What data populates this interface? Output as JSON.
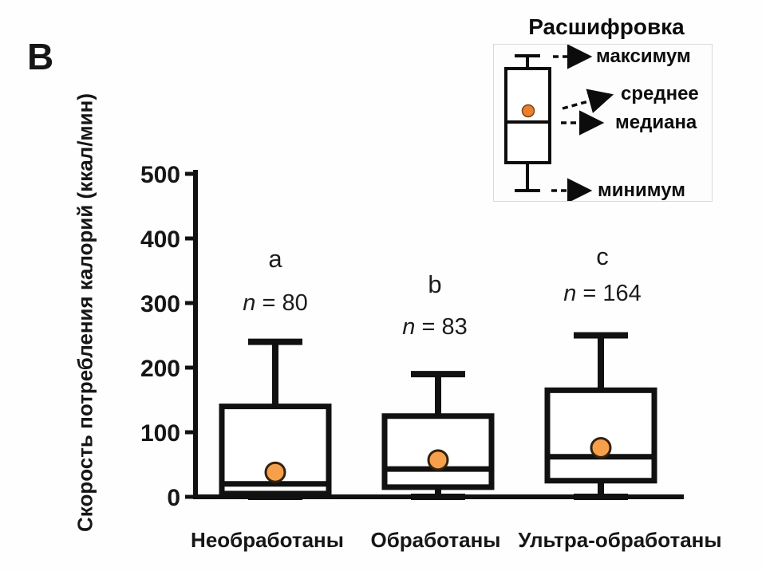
{
  "panel_letter": "В",
  "legend": {
    "title": "Расшифровка",
    "items": {
      "max": "максимум",
      "mean": "среднее",
      "median": "медиана",
      "min": "минимум"
    }
  },
  "chart_data": {
    "type": "boxplot",
    "title": "",
    "ylabel": "Скорость потребления калорий (ккал/мин)",
    "xlabel": "",
    "ylim": [
      0,
      500
    ],
    "yticks": [
      0,
      100,
      200,
      300,
      400,
      500
    ],
    "grid": false,
    "legend_position": "top-right",
    "categories": [
      "Необработаны",
      "Обработаны",
      "Ультра-обработаны"
    ],
    "series": [
      {
        "category": "Необработаны",
        "sig_letter": "a",
        "n_prefix": "n",
        "n_rest": " = 80",
        "n": 80,
        "min": 0,
        "q1": 5,
        "median": 20,
        "q3": 140,
        "max": 240,
        "mean": 38
      },
      {
        "category": "Обработаны",
        "sig_letter": "b",
        "n_prefix": "n",
        "n_rest": " = 83",
        "n": 83,
        "min": 0,
        "q1": 15,
        "median": 43,
        "q3": 125,
        "max": 190,
        "mean": 57
      },
      {
        "category": "Ультра-обработаны",
        "sig_letter": "c",
        "n_prefix": "n",
        "n_rest": " = 164",
        "n": 164,
        "min": 0,
        "q1": 25,
        "median": 62,
        "q3": 165,
        "max": 250,
        "mean": 76
      }
    ],
    "colors": {
      "box_stroke": "#111111",
      "axis": "#111111",
      "mean_dot_fill": "#F6A04B",
      "mean_dot_stroke": "#33220e",
      "legend_dot_fill": "#E8802F"
    }
  }
}
